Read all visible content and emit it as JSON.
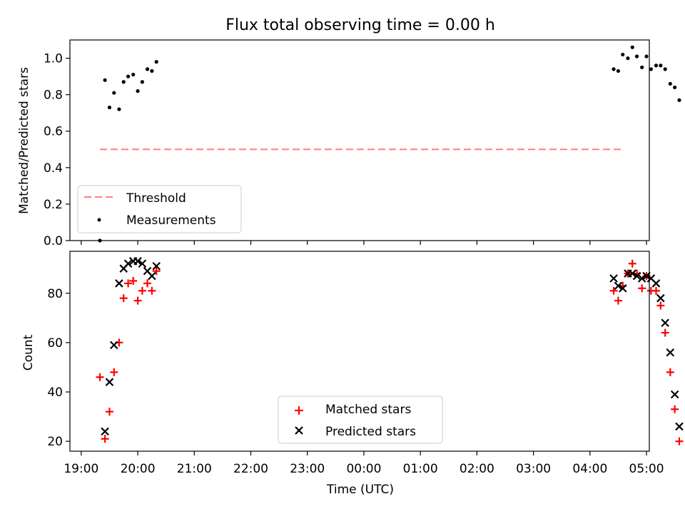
{
  "figure_title": "Flux total observing time = 0.00 h",
  "chart_data": [
    {
      "type": "scatter",
      "title": "Flux total observing time = 0.00 h",
      "xlabel": "",
      "ylabel": "Matched/Predicted stars",
      "ylim": [
        0.0,
        1.1
      ],
      "yticks": [
        "0.0",
        "0.2",
        "0.4",
        "0.6",
        "0.8",
        "1.0"
      ],
      "yticks_values": [
        0.0,
        0.2,
        0.4,
        0.6,
        0.8,
        1.0
      ],
      "xlim_hours": [
        18.8,
        29.05
      ],
      "legend_position": "lower-left",
      "threshold": {
        "name": "Threshold",
        "value": 0.5,
        "x_start": 19.33,
        "x_end": 28.58,
        "color": "#ff7f7f"
      },
      "measurements": {
        "name": "Measurements",
        "color": "#000000",
        "x": [
          19.33,
          19.42,
          19.5,
          19.58,
          19.67,
          19.75,
          19.83,
          19.92,
          20.0,
          20.08,
          20.17,
          20.25,
          20.33,
          28.42,
          28.5,
          28.58,
          28.67,
          28.75,
          28.83,
          28.92,
          29.0,
          29.08,
          29.17,
          29.25,
          29.33,
          29.42,
          29.5,
          29.58
        ],
        "y": [
          0.0,
          0.88,
          0.73,
          0.81,
          0.72,
          0.87,
          0.9,
          0.91,
          0.82,
          0.87,
          0.94,
          0.93,
          0.98,
          0.94,
          0.93,
          1.02,
          1.0,
          1.06,
          1.01,
          0.95,
          1.01,
          0.94,
          0.96,
          0.96,
          0.94,
          0.86,
          0.84,
          0.77
        ]
      }
    },
    {
      "type": "scatter",
      "title": "",
      "xlabel": "Time (UTC)",
      "ylabel": "Count",
      "ylim": [
        16,
        97
      ],
      "yticks": [
        "20",
        "40",
        "60",
        "80"
      ],
      "yticks_values": [
        20,
        40,
        60,
        80
      ],
      "xticks": [
        "19:00",
        "20:00",
        "21:00",
        "22:00",
        "23:00",
        "00:00",
        "01:00",
        "02:00",
        "03:00",
        "04:00",
        "05:00"
      ],
      "legend_position": "bottom-center",
      "series": [
        {
          "name": "Matched stars",
          "marker": "plus",
          "color": "#ff0000",
          "x": [
            19.33,
            19.42,
            19.5,
            19.58,
            19.67,
            19.75,
            19.83,
            19.92,
            20.0,
            20.08,
            20.17,
            20.25,
            20.33,
            28.42,
            28.5,
            28.58,
            28.67,
            28.75,
            28.83,
            28.92,
            29.0,
            29.08,
            29.17,
            29.25,
            29.33,
            29.42,
            29.5,
            29.58
          ],
          "y": [
            46,
            21,
            32,
            48,
            60,
            78,
            84,
            85,
            77,
            81,
            84,
            81,
            89,
            81,
            77,
            83,
            88,
            92,
            88,
            82,
            87,
            81,
            81,
            75,
            64,
            48,
            33,
            20
          ]
        },
        {
          "name": "Predicted stars",
          "marker": "x",
          "color": "#000000",
          "x": [
            19.42,
            19.5,
            19.58,
            19.67,
            19.75,
            19.83,
            19.92,
            20.0,
            20.08,
            20.17,
            20.25,
            20.33,
            28.42,
            28.5,
            28.58,
            28.67,
            28.75,
            28.83,
            28.92,
            29.0,
            29.08,
            29.17,
            29.25,
            29.33,
            29.42,
            29.5,
            29.58
          ],
          "y": [
            24,
            44,
            59,
            84,
            90,
            92,
            93,
            93,
            92,
            89,
            87,
            91,
            86,
            83,
            82,
            88,
            88,
            87,
            86,
            87,
            86,
            84,
            78,
            68,
            56,
            39,
            26
          ]
        }
      ]
    }
  ]
}
